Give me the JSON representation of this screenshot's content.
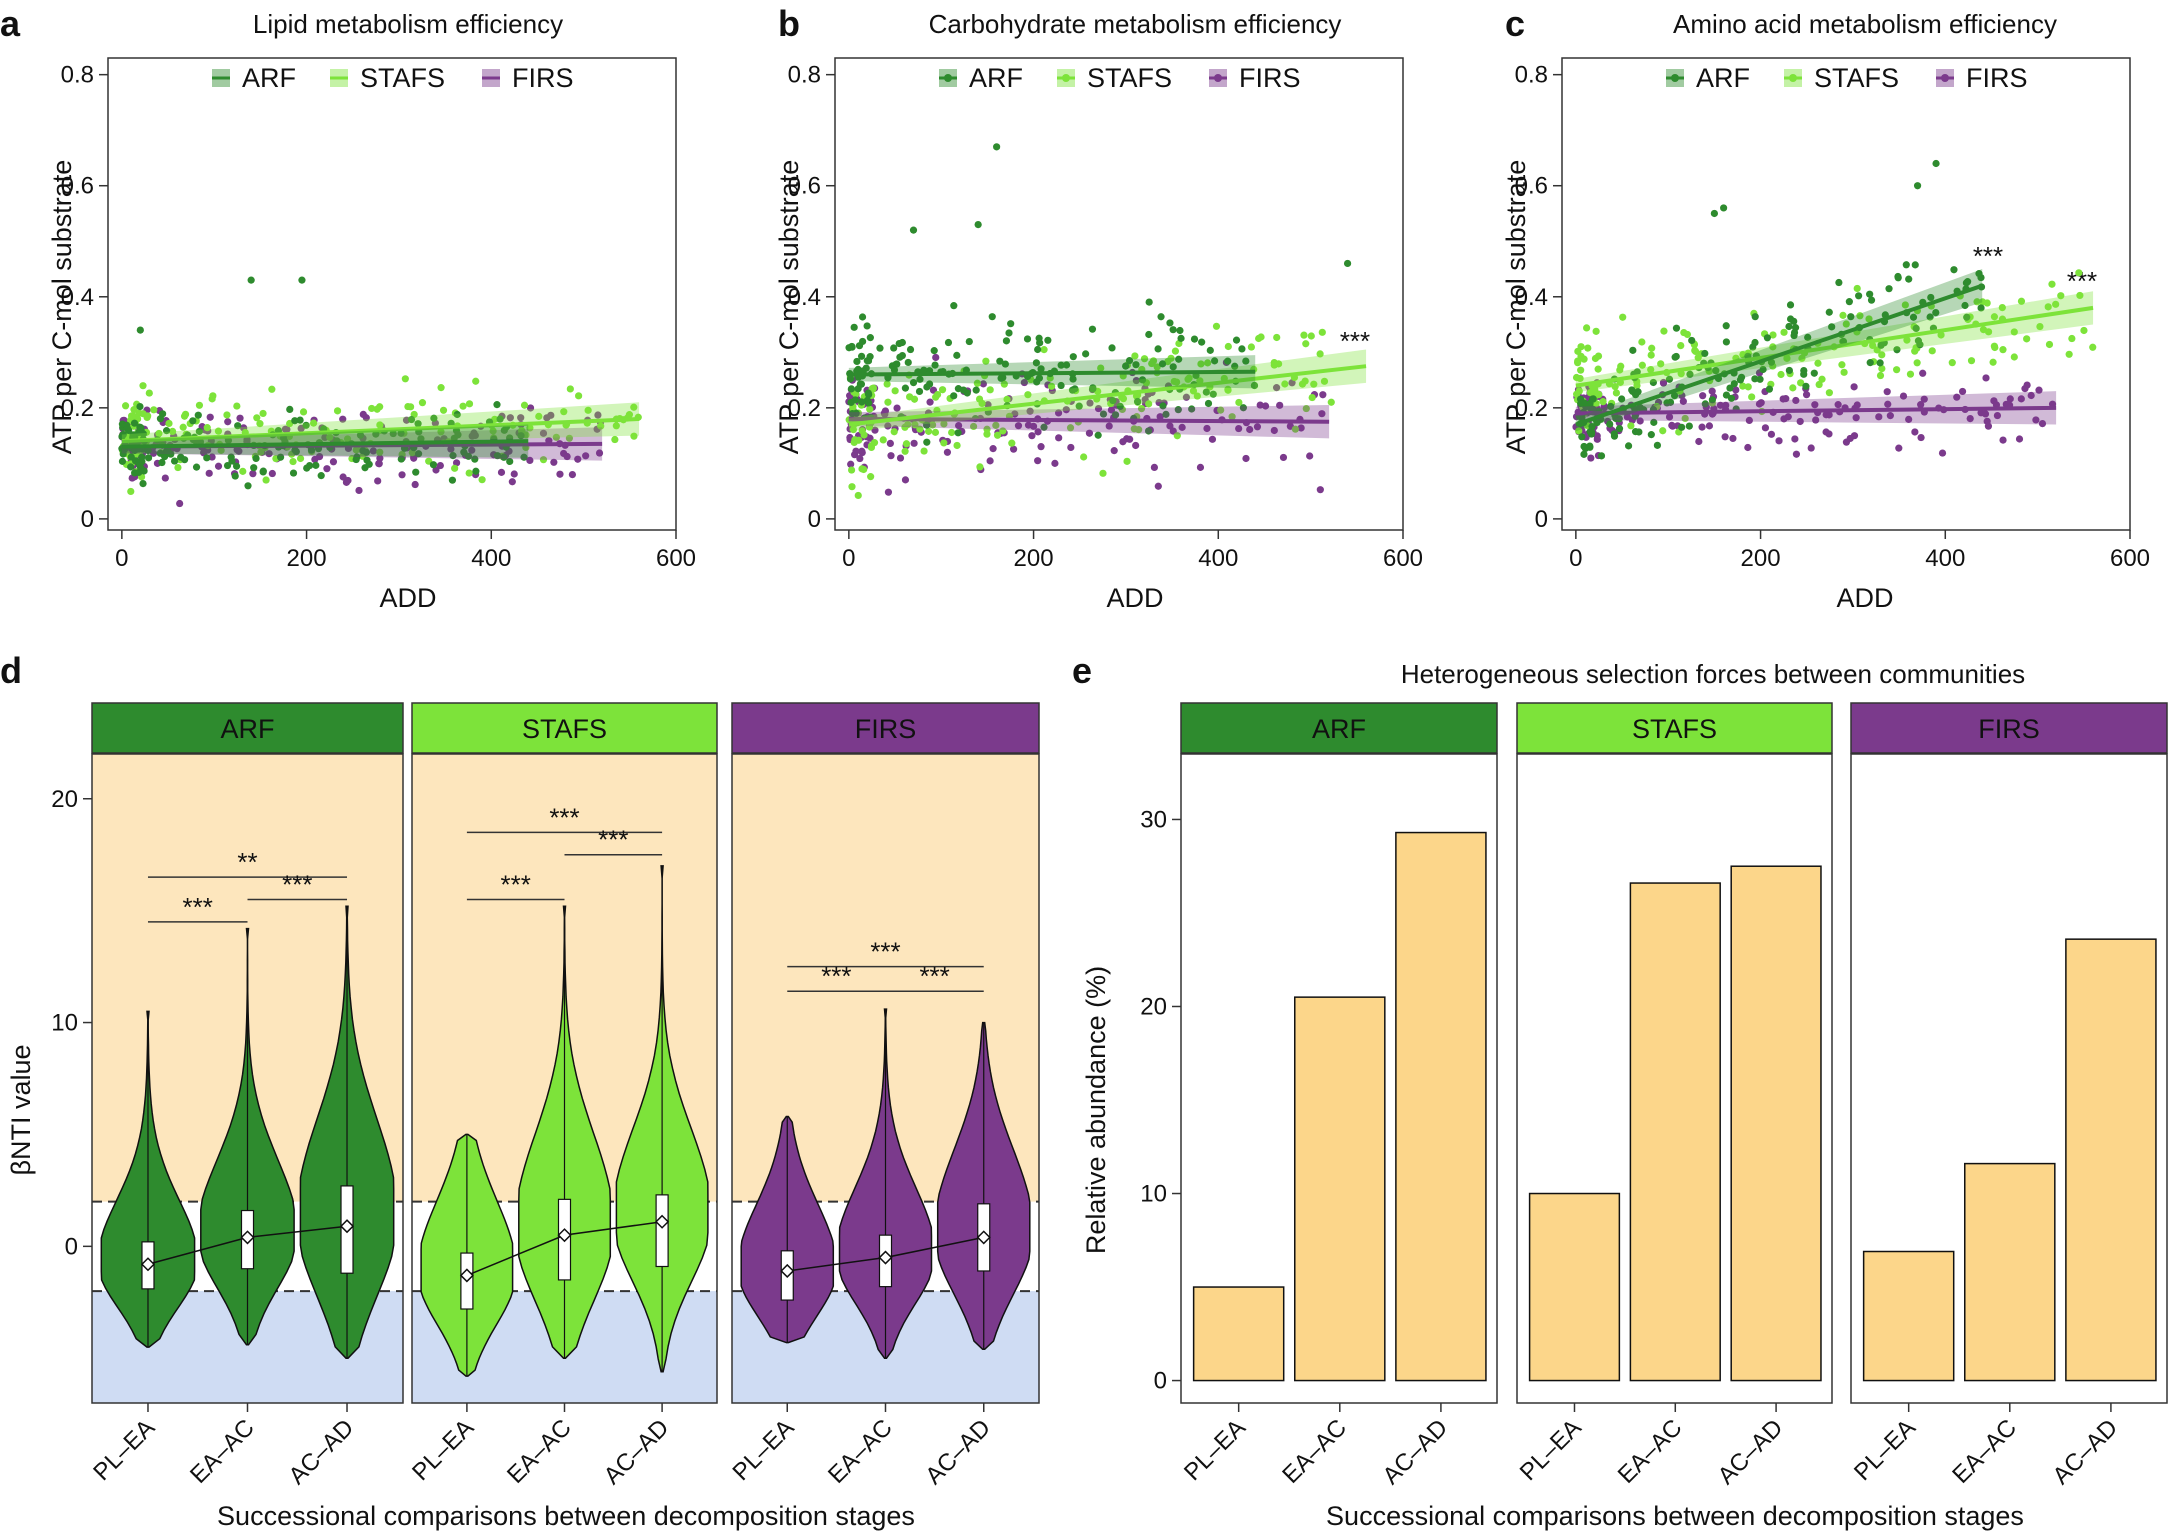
{
  "colors": {
    "ARF": "#2e8b2e",
    "STAFS": "#7de33a",
    "FIRS": "#7b3a8c",
    "bar": "#fcd68a",
    "bg_upper": "#fde6bd",
    "bg_lower": "#cfdcf3"
  },
  "panels": {
    "a": {
      "label": "a",
      "title": "Lipid metabolism efficiency",
      "xlabel": "ADD",
      "ylabel": "ATP per C-mol substrate"
    },
    "b": {
      "label": "b",
      "title": "Carbohydrate metabolism efficiency",
      "xlabel": "ADD",
      "ylabel": "ATP per C-mol substrate",
      "sig": "***"
    },
    "c": {
      "label": "c",
      "title": "Amino acid metabolism efficiency",
      "xlabel": "ADD",
      "ylabel": "ATP per C-mol substrate",
      "sig1": "***",
      "sig2": "***"
    },
    "d": {
      "label": "d",
      "xlabel": "Successional comparisons between decomposition stages",
      "ylabel": "βNTI value"
    },
    "e": {
      "label": "e",
      "title": "Heterogeneous selection forces between communities",
      "xlabel": "Successional comparisons between decomposition stages",
      "ylabel": "Relative abundance (%)"
    }
  },
  "legend": [
    "ARF",
    "STAFS",
    "FIRS"
  ],
  "chart_data": [
    {
      "id": "a",
      "type": "scatter",
      "title": "Lipid metabolism efficiency",
      "xlabel": "ADD",
      "ylabel": "ATP per C-mol substrate",
      "xlim": [
        -15,
        600
      ],
      "ylim": [
        -0.02,
        0.83
      ],
      "xticks": [
        0,
        200,
        400,
        600
      ],
      "yticks": [
        0,
        0.2,
        0.4,
        0.6,
        0.8
      ],
      "series": [
        {
          "name": "ARF",
          "fit": [
            [
              0,
              0.13
            ],
            [
              440,
              0.14
            ]
          ],
          "center": 0.13,
          "spread": 0.045,
          "xmax": 440
        },
        {
          "name": "STAFS",
          "fit": [
            [
              0,
              0.14
            ],
            [
              560,
              0.18
            ]
          ],
          "center": 0.15,
          "spread": 0.055,
          "xmax": 560
        },
        {
          "name": "FIRS",
          "fit": [
            [
              0,
              0.13
            ],
            [
              520,
              0.135
            ]
          ],
          "center": 0.13,
          "spread": 0.05,
          "xmax": 520
        }
      ],
      "outliers": [
        [
          140,
          0.43
        ],
        [
          195,
          0.43
        ],
        [
          20,
          0.34
        ]
      ]
    },
    {
      "id": "b",
      "type": "scatter",
      "title": "Carbohydrate metabolism efficiency",
      "xlabel": "ADD",
      "ylabel": "ATP per C-mol substrate",
      "xlim": [
        -15,
        600
      ],
      "ylim": [
        -0.02,
        0.83
      ],
      "xticks": [
        0,
        200,
        400,
        600
      ],
      "yticks": [
        0,
        0.2,
        0.4,
        0.6,
        0.8
      ],
      "series": [
        {
          "name": "ARF",
          "fit": [
            [
              0,
              0.26
            ],
            [
              440,
              0.265
            ]
          ],
          "center": 0.26,
          "spread": 0.07,
          "xmax": 440
        },
        {
          "name": "STAFS",
          "fit": [
            [
              0,
              0.17
            ],
            [
              560,
              0.275
            ]
          ],
          "center": 0.2,
          "spread": 0.07,
          "xmax": 560
        },
        {
          "name": "FIRS",
          "fit": [
            [
              0,
              0.18
            ],
            [
              520,
              0.175
            ]
          ],
          "center": 0.18,
          "spread": 0.07,
          "xmax": 520
        }
      ],
      "outliers": [
        [
          160,
          0.67
        ],
        [
          140,
          0.53
        ],
        [
          70,
          0.52
        ],
        [
          540,
          0.46
        ]
      ]
    },
    {
      "id": "c",
      "type": "scatter",
      "title": "Amino acid metabolism efficiency",
      "xlabel": "ADD",
      "ylabel": "ATP per C-mol substrate",
      "xlim": [
        -15,
        600
      ],
      "ylim": [
        -0.02,
        0.83
      ],
      "xticks": [
        0,
        200,
        400,
        600
      ],
      "yticks": [
        0,
        0.2,
        0.4,
        0.6,
        0.8
      ],
      "series": [
        {
          "name": "ARF",
          "fit": [
            [
              0,
              0.17
            ],
            [
              440,
              0.42
            ]
          ],
          "center": 0.0,
          "spread": 0.06,
          "xmax": 440
        },
        {
          "name": "STAFS",
          "fit": [
            [
              0,
              0.24
            ],
            [
              560,
              0.38
            ]
          ],
          "center": 0.0,
          "spread": 0.06,
          "xmax": 560
        },
        {
          "name": "FIRS",
          "fit": [
            [
              0,
              0.19
            ],
            [
              520,
              0.2
            ]
          ],
          "center": 0.19,
          "spread": 0.05,
          "xmax": 520
        }
      ],
      "outliers": [
        [
          390,
          0.64
        ],
        [
          370,
          0.6
        ],
        [
          160,
          0.56
        ],
        [
          150,
          0.55
        ]
      ]
    },
    {
      "id": "d",
      "type": "violin",
      "xlabel": "Successional comparisons between decomposition stages",
      "ylabel": "βNTI value",
      "ylim": [
        -7,
        22
      ],
      "yticks": [
        0,
        10,
        20
      ],
      "thresholds": [
        -2,
        2
      ],
      "categories": [
        "PL–EA",
        "EA–AC",
        "AC–AD"
      ],
      "groups": [
        {
          "name": "ARF",
          "medians": [
            -0.8,
            0.4,
            0.9
          ],
          "q1": [
            -1.9,
            -1.0,
            -1.2
          ],
          "q3": [
            0.2,
            1.6,
            2.7
          ],
          "min": [
            -4.5,
            -4.4,
            -5.0
          ],
          "max": [
            10.5,
            14.2,
            15.2
          ],
          "brackets": [
            {
              "from": 0,
              "to": 1,
              "y": 14.5,
              "label": "***"
            },
            {
              "from": 1,
              "to": 2,
              "y": 15.5,
              "label": "***"
            },
            {
              "from": 0,
              "to": 2,
              "y": 16.5,
              "label": "**"
            }
          ]
        },
        {
          "name": "STAFS",
          "medians": [
            -1.3,
            0.5,
            1.1
          ],
          "q1": [
            -2.8,
            -1.5,
            -0.9
          ],
          "q3": [
            -0.3,
            2.1,
            2.3
          ],
          "min": [
            -5.8,
            -5.0,
            -5.6
          ],
          "max": [
            5.0,
            15.2,
            17.0
          ],
          "brackets": [
            {
              "from": 0,
              "to": 1,
              "y": 15.5,
              "label": "***"
            },
            {
              "from": 1,
              "to": 2,
              "y": 17.5,
              "label": "***"
            },
            {
              "from": 0,
              "to": 2,
              "y": 18.5,
              "label": "***"
            }
          ]
        },
        {
          "name": "FIRS",
          "medians": [
            -1.1,
            -0.5,
            0.4
          ],
          "q1": [
            -2.4,
            -1.8,
            -1.1
          ],
          "q3": [
            -0.2,
            0.5,
            1.9
          ],
          "min": [
            -4.3,
            -5.0,
            -4.6
          ],
          "max": [
            5.8,
            10.6,
            10.0
          ],
          "brackets": [
            {
              "from": 0,
              "to": 1,
              "y": 11.4,
              "label": "***"
            },
            {
              "from": 1,
              "to": 2,
              "y": 11.4,
              "label": "***"
            },
            {
              "from": 0,
              "to": 2,
              "y": 12.5,
              "label": "***"
            }
          ]
        }
      ]
    },
    {
      "id": "e",
      "type": "bar",
      "title": "Heterogeneous selection forces between communities",
      "xlabel": "Successional comparisons between decomposition stages",
      "ylabel": "Relative abundance (%)",
      "ylim": [
        -1.2,
        33.5
      ],
      "yticks": [
        0,
        10,
        20,
        30
      ],
      "categories": [
        "PL–EA",
        "EA–AC",
        "AC–AD"
      ],
      "series": [
        {
          "name": "ARF",
          "values": [
            5.0,
            20.5,
            29.3
          ]
        },
        {
          "name": "STAFS",
          "values": [
            10.0,
            26.6,
            27.5
          ]
        },
        {
          "name": "FIRS",
          "values": [
            6.9,
            11.6,
            23.6
          ]
        }
      ]
    }
  ]
}
